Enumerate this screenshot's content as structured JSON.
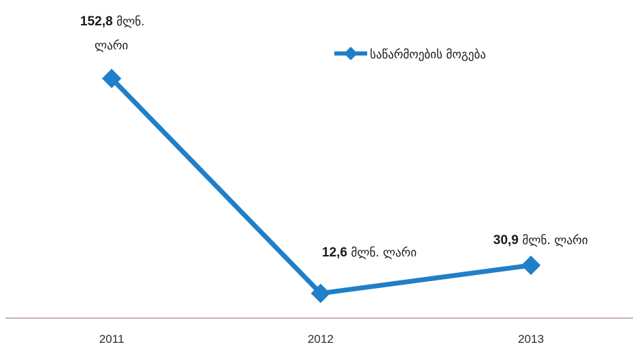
{
  "chart_data": {
    "type": "line",
    "categories": [
      "2011",
      "2012",
      "2013"
    ],
    "series": [
      {
        "name": "საწარმოების მოგება",
        "values": [
          152.8,
          12.6,
          30.9
        ],
        "color": "#1f7fc8",
        "labels": [
          {
            "value": "152,8",
            "unit": "მლნ.",
            "unit2": "ლარი"
          },
          {
            "value": "12,6",
            "unit": "მლნ. ლარი"
          },
          {
            "value": "30,9",
            "unit": "მლნ. ლარი"
          }
        ]
      }
    ],
    "xlabel": "",
    "ylabel": "",
    "grid": false,
    "legend_position": "top-right",
    "axis_color": "#b59a8e"
  }
}
